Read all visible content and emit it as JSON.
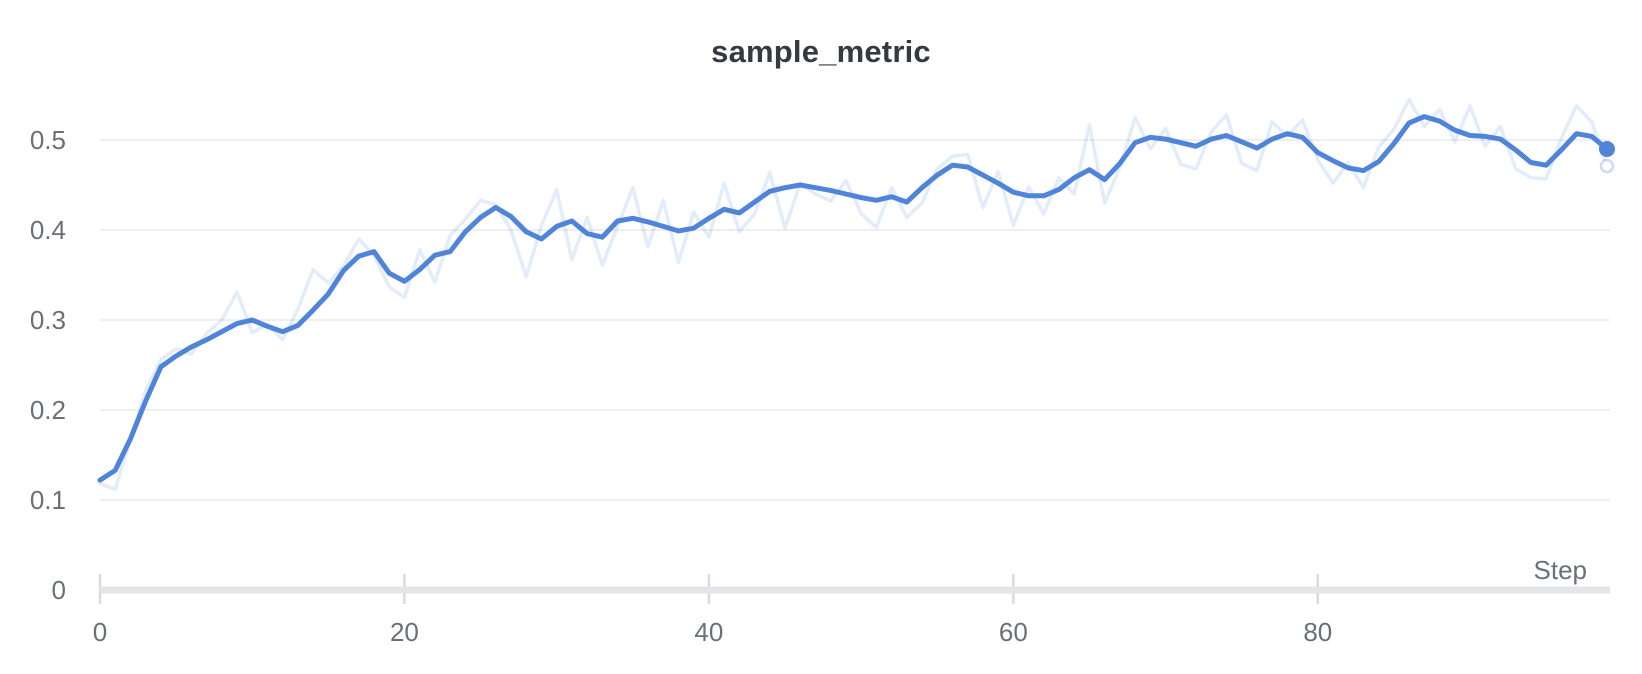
{
  "panel": {
    "background": "#ffffff"
  },
  "chart_data": {
    "type": "line",
    "title": "sample_metric",
    "xlabel": "Step",
    "ylabel": "",
    "legend": "none",
    "grid": "horizontal-only",
    "x_axis": {
      "min": 0,
      "max": 99,
      "ticks": [
        {
          "value": 0,
          "label": "0"
        },
        {
          "value": 20,
          "label": "20"
        },
        {
          "value": 40,
          "label": "40"
        },
        {
          "value": 60,
          "label": "60"
        },
        {
          "value": 80,
          "label": "80"
        }
      ]
    },
    "y_axis": {
      "min": 0,
      "max": 0.56,
      "ticks": [
        {
          "value": 0,
          "label": "0"
        },
        {
          "value": 0.1,
          "label": "0.1"
        },
        {
          "value": 0.2,
          "label": "0.2"
        },
        {
          "value": 0.3,
          "label": "0.3"
        },
        {
          "value": 0.4,
          "label": "0.4"
        },
        {
          "value": 0.5,
          "label": "0.5"
        }
      ]
    },
    "colors": {
      "line": "#4f84da",
      "raw_line": "#5387dd",
      "raw_opacity": 0.16,
      "grid": "#e9eaec",
      "axis_bar": "#e4e5e9",
      "tick_mark": "#d9dade",
      "label": "#6b7078",
      "title": "#343a41"
    },
    "steps": [
      0,
      1,
      2,
      3,
      4,
      5,
      6,
      7,
      8,
      9,
      10,
      11,
      12,
      13,
      14,
      15,
      16,
      17,
      18,
      19,
      20,
      21,
      22,
      23,
      24,
      25,
      26,
      27,
      28,
      29,
      30,
      31,
      32,
      33,
      34,
      35,
      36,
      37,
      38,
      39,
      40,
      41,
      42,
      43,
      44,
      45,
      46,
      47,
      48,
      49,
      50,
      51,
      52,
      53,
      54,
      55,
      56,
      57,
      58,
      59,
      60,
      61,
      62,
      63,
      64,
      65,
      66,
      67,
      68,
      69,
      70,
      71,
      72,
      73,
      74,
      75,
      76,
      77,
      78,
      79,
      80,
      81,
      82,
      83,
      84,
      85,
      86,
      87,
      88,
      89,
      90,
      91,
      92,
      93,
      94,
      95,
      96,
      97,
      98,
      99
    ],
    "series": [
      {
        "name": "raw",
        "values": [
          0.118,
          0.112,
          0.168,
          0.222,
          0.256,
          0.268,
          0.262,
          0.285,
          0.3,
          0.331,
          0.286,
          0.295,
          0.278,
          0.312,
          0.356,
          0.341,
          0.36,
          0.39,
          0.372,
          0.337,
          0.325,
          0.378,
          0.342,
          0.394,
          0.412,
          0.433,
          0.428,
          0.4,
          0.348,
          0.405,
          0.445,
          0.367,
          0.414,
          0.361,
          0.404,
          0.447,
          0.381,
          0.433,
          0.364,
          0.42,
          0.392,
          0.452,
          0.398,
          0.418,
          0.464,
          0.402,
          0.452,
          0.44,
          0.432,
          0.455,
          0.418,
          0.403,
          0.447,
          0.414,
          0.43,
          0.468,
          0.482,
          0.484,
          0.425,
          0.465,
          0.405,
          0.448,
          0.418,
          0.458,
          0.44,
          0.517,
          0.43,
          0.47,
          0.525,
          0.49,
          0.513,
          0.473,
          0.468,
          0.509,
          0.528,
          0.474,
          0.466,
          0.52,
          0.505,
          0.522,
          0.478,
          0.452,
          0.475,
          0.447,
          0.492,
          0.512,
          0.545,
          0.515,
          0.534,
          0.498,
          0.538,
          0.493,
          0.515,
          0.468,
          0.458,
          0.457,
          0.502,
          0.538,
          0.52,
          0.471
        ]
      },
      {
        "name": "smoothed",
        "values": [
          0.122,
          0.133,
          0.168,
          0.21,
          0.248,
          0.26,
          0.27,
          0.278,
          0.287,
          0.296,
          0.3,
          0.293,
          0.287,
          0.294,
          0.311,
          0.329,
          0.355,
          0.371,
          0.376,
          0.352,
          0.343,
          0.356,
          0.372,
          0.376,
          0.398,
          0.414,
          0.425,
          0.415,
          0.398,
          0.39,
          0.404,
          0.41,
          0.396,
          0.392,
          0.41,
          0.413,
          0.409,
          0.404,
          0.399,
          0.402,
          0.413,
          0.423,
          0.419,
          0.431,
          0.443,
          0.447,
          0.45,
          0.447,
          0.444,
          0.44,
          0.436,
          0.433,
          0.437,
          0.431,
          0.447,
          0.461,
          0.472,
          0.47,
          0.461,
          0.452,
          0.442,
          0.438,
          0.438,
          0.445,
          0.458,
          0.467,
          0.456,
          0.474,
          0.497,
          0.503,
          0.501,
          0.497,
          0.493,
          0.501,
          0.505,
          0.498,
          0.491,
          0.501,
          0.507,
          0.503,
          0.486,
          0.477,
          0.469,
          0.466,
          0.476,
          0.496,
          0.519,
          0.526,
          0.521,
          0.511,
          0.505,
          0.504,
          0.501,
          0.489,
          0.475,
          0.472,
          0.489,
          0.507,
          0.504,
          0.49
        ]
      }
    ],
    "end_markers": {
      "smoothed": {
        "step": 99,
        "value": 0.49
      },
      "raw": {
        "step": 99,
        "value": 0.471
      }
    }
  }
}
